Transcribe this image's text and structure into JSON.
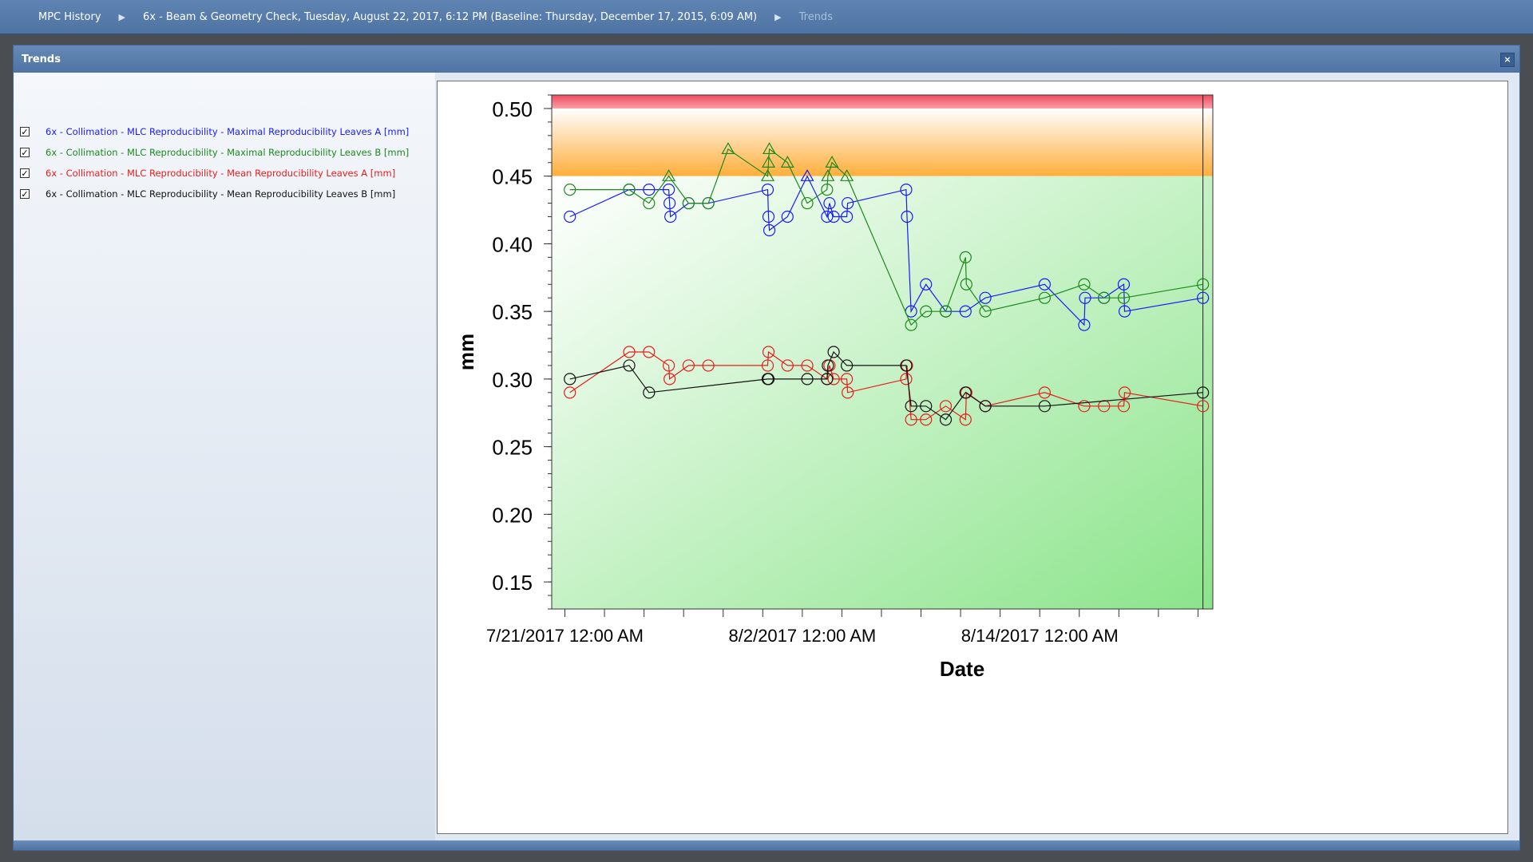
{
  "breadcrumb": {
    "root": "MPC History",
    "check": "6x - Beam & Geometry Check, Tuesday, August 22, 2017, 6:12 PM (Baseline: Thursday, December 17, 2015, 6:09 AM)",
    "current": "Trends"
  },
  "panel": {
    "title": "Trends",
    "close": "×"
  },
  "legend": [
    {
      "label": "6x - Collimation - MLC Reproducibility - Maximal Reproducibility Leaves A [mm]",
      "color": "#1a1aff",
      "checked": true
    },
    {
      "label": "6x - Collimation - MLC Reproducibility - Maximal Reproducibility Leaves B [mm]",
      "color": "#1a8a1a",
      "checked": true
    },
    {
      "label": "6x - Collimation - MLC Reproducibility - Mean Reproducibility Leaves A [mm]",
      "color": "#e81c1c",
      "checked": true
    },
    {
      "label": "6x - Collimation - MLC Reproducibility - Mean Reproducibility Leaves B [mm]",
      "color": "#111111",
      "checked": true
    }
  ],
  "chart_data": {
    "type": "line",
    "xlabel": "Date",
    "ylabel": "mm",
    "ylim": [
      0.13,
      0.51
    ],
    "y_ticks": [
      "0.15",
      "0.20",
      "0.25",
      "0.30",
      "0.35",
      "0.40",
      "0.45",
      "0.50"
    ],
    "x_tick_labels": [
      "7/21/2017 12:00 AM",
      "8/2/2017 12:00 AM",
      "8/14/2017 12:00 AM"
    ],
    "xlim": [
      "2017-07-20T08:00",
      "2017-08-22T18:00"
    ],
    "zones": [
      {
        "from": 0.5,
        "to": 0.51,
        "color": "#f05060"
      },
      {
        "from": 0.45,
        "to": 0.5,
        "color": "#ffb040"
      },
      {
        "from": 0.13,
        "to": 0.45,
        "color": "#8ee48e"
      }
    ],
    "series": [
      {
        "name": "6x - Collimation - MLC Reproducibility - Maximal Reproducibility Leaves A [mm]",
        "color": "#1a1aff",
        "points": [
          [
            "2017-07-21T06:00",
            0.42,
            "o"
          ],
          [
            "2017-07-24T06:00",
            0.44,
            "o"
          ],
          [
            "2017-07-25T06:00",
            0.44,
            "o"
          ],
          [
            "2017-07-26T06:00",
            0.44,
            "o"
          ],
          [
            "2017-07-26T07:00",
            0.43,
            "o"
          ],
          [
            "2017-07-26T08:00",
            0.42,
            "o"
          ],
          [
            "2017-07-27T06:00",
            0.43,
            "o"
          ],
          [
            "2017-07-28T06:00",
            0.43,
            "o"
          ],
          [
            "2017-07-31T06:00",
            0.44,
            "o"
          ],
          [
            "2017-07-31T07:00",
            0.42,
            "o"
          ],
          [
            "2017-07-31T08:00",
            0.41,
            "o"
          ],
          [
            "2017-08-01T06:00",
            0.42,
            "o"
          ],
          [
            "2017-08-02T06:00",
            0.45,
            "t"
          ],
          [
            "2017-08-03T06:00",
            0.42,
            "o"
          ],
          [
            "2017-08-03T09:00",
            0.43,
            "o"
          ],
          [
            "2017-08-03T14:00",
            0.42,
            "o"
          ],
          [
            "2017-08-04T06:00",
            0.42,
            "o"
          ],
          [
            "2017-08-04T07:00",
            0.43,
            "o"
          ],
          [
            "2017-08-07T06:00",
            0.44,
            "o"
          ],
          [
            "2017-08-07T07:00",
            0.42,
            "o"
          ],
          [
            "2017-08-07T12:00",
            0.35,
            "o"
          ],
          [
            "2017-08-08T06:00",
            0.37,
            "o"
          ],
          [
            "2017-08-09T06:00",
            0.35,
            "o"
          ],
          [
            "2017-08-10T06:00",
            0.35,
            "o"
          ],
          [
            "2017-08-11T06:00",
            0.36,
            "o"
          ],
          [
            "2017-08-14T06:00",
            0.37,
            "o"
          ],
          [
            "2017-08-16T06:00",
            0.34,
            "o"
          ],
          [
            "2017-08-16T07:00",
            0.36,
            "o"
          ],
          [
            "2017-08-17T06:00",
            0.36,
            "o"
          ],
          [
            "2017-08-18T06:00",
            0.37,
            "o"
          ],
          [
            "2017-08-18T07:00",
            0.35,
            "o"
          ],
          [
            "2017-08-22T06:00",
            0.36,
            "o"
          ]
        ]
      },
      {
        "name": "6x - Collimation - MLC Reproducibility - Maximal Reproducibility Leaves B [mm]",
        "color": "#1a8a1a",
        "points": [
          [
            "2017-07-21T06:00",
            0.44,
            "o"
          ],
          [
            "2017-07-24T06:00",
            0.44,
            "o"
          ],
          [
            "2017-07-25T06:00",
            0.43,
            "o"
          ],
          [
            "2017-07-26T06:00",
            0.45,
            "t"
          ],
          [
            "2017-07-27T06:00",
            0.43,
            "o"
          ],
          [
            "2017-07-28T06:00",
            0.43,
            "o"
          ],
          [
            "2017-07-29T06:00",
            0.47,
            "t"
          ],
          [
            "2017-07-31T06:00",
            0.45,
            "t"
          ],
          [
            "2017-07-31T07:00",
            0.46,
            "t"
          ],
          [
            "2017-07-31T08:00",
            0.47,
            "t"
          ],
          [
            "2017-08-01T06:00",
            0.46,
            "t"
          ],
          [
            "2017-08-02T06:00",
            0.43,
            "o"
          ],
          [
            "2017-08-03T06:00",
            0.44,
            "o"
          ],
          [
            "2017-08-03T07:00",
            0.45,
            "t"
          ],
          [
            "2017-08-03T12:00",
            0.46,
            "t"
          ],
          [
            "2017-08-04T06:00",
            0.45,
            "t"
          ],
          [
            "2017-08-07T12:00",
            0.34,
            "o"
          ],
          [
            "2017-08-08T06:00",
            0.35,
            "o"
          ],
          [
            "2017-08-09T06:00",
            0.35,
            "o"
          ],
          [
            "2017-08-10T06:00",
            0.39,
            "o"
          ],
          [
            "2017-08-10T07:00",
            0.37,
            "o"
          ],
          [
            "2017-08-11T06:00",
            0.35,
            "o"
          ],
          [
            "2017-08-14T06:00",
            0.36,
            "o"
          ],
          [
            "2017-08-16T06:00",
            0.37,
            "o"
          ],
          [
            "2017-08-17T06:00",
            0.36,
            "o"
          ],
          [
            "2017-08-18T06:00",
            0.36,
            "o"
          ],
          [
            "2017-08-22T06:00",
            0.37,
            "o"
          ]
        ]
      },
      {
        "name": "6x - Collimation - MLC Reproducibility - Mean Reproducibility Leaves A [mm]",
        "color": "#e81c1c",
        "points": [
          [
            "2017-07-21T06:00",
            0.29,
            "o"
          ],
          [
            "2017-07-24T06:00",
            0.32,
            "o"
          ],
          [
            "2017-07-25T06:00",
            0.32,
            "o"
          ],
          [
            "2017-07-26T06:00",
            0.31,
            "o"
          ],
          [
            "2017-07-26T07:00",
            0.3,
            "o"
          ],
          [
            "2017-07-27T06:00",
            0.31,
            "o"
          ],
          [
            "2017-07-28T06:00",
            0.31,
            "o"
          ],
          [
            "2017-07-31T06:00",
            0.31,
            "o"
          ],
          [
            "2017-07-31T07:00",
            0.32,
            "o"
          ],
          [
            "2017-08-01T06:00",
            0.31,
            "o"
          ],
          [
            "2017-08-02T06:00",
            0.31,
            "o"
          ],
          [
            "2017-08-03T06:00",
            0.3,
            "o"
          ],
          [
            "2017-08-03T09:00",
            0.31,
            "o"
          ],
          [
            "2017-08-03T14:00",
            0.3,
            "o"
          ],
          [
            "2017-08-04T06:00",
            0.3,
            "o"
          ],
          [
            "2017-08-04T07:00",
            0.29,
            "o"
          ],
          [
            "2017-08-07T06:00",
            0.3,
            "o"
          ],
          [
            "2017-08-07T07:00",
            0.31,
            "o"
          ],
          [
            "2017-08-07T12:00",
            0.27,
            "o"
          ],
          [
            "2017-08-08T06:00",
            0.27,
            "o"
          ],
          [
            "2017-08-09T06:00",
            0.28,
            "o"
          ],
          [
            "2017-08-10T06:00",
            0.27,
            "o"
          ],
          [
            "2017-08-10T07:00",
            0.29,
            "o"
          ],
          [
            "2017-08-11T06:00",
            0.28,
            "o"
          ],
          [
            "2017-08-14T06:00",
            0.29,
            "o"
          ],
          [
            "2017-08-16T06:00",
            0.28,
            "o"
          ],
          [
            "2017-08-17T06:00",
            0.28,
            "o"
          ],
          [
            "2017-08-18T06:00",
            0.28,
            "o"
          ],
          [
            "2017-08-18T07:00",
            0.29,
            "o"
          ],
          [
            "2017-08-22T06:00",
            0.28,
            "o"
          ]
        ]
      },
      {
        "name": "6x - Collimation - MLC Reproducibility - Mean Reproducibility Leaves B [mm]",
        "color": "#111111",
        "points": [
          [
            "2017-07-21T06:00",
            0.3,
            "o"
          ],
          [
            "2017-07-24T06:00",
            0.31,
            "o"
          ],
          [
            "2017-07-25T06:00",
            0.29,
            "o"
          ],
          [
            "2017-07-31T06:00",
            0.3,
            "o"
          ],
          [
            "2017-07-31T07:00",
            0.3,
            "o"
          ],
          [
            "2017-08-02T06:00",
            0.3,
            "o"
          ],
          [
            "2017-08-03T06:00",
            0.3,
            "o"
          ],
          [
            "2017-08-03T07:00",
            0.31,
            "o"
          ],
          [
            "2017-08-03T14:00",
            0.32,
            "o"
          ],
          [
            "2017-08-04T06:00",
            0.31,
            "o"
          ],
          [
            "2017-08-07T06:00",
            0.31,
            "o"
          ],
          [
            "2017-08-07T12:00",
            0.28,
            "o"
          ],
          [
            "2017-08-08T06:00",
            0.28,
            "o"
          ],
          [
            "2017-08-09T06:00",
            0.27,
            "o"
          ],
          [
            "2017-08-10T06:00",
            0.29,
            "o"
          ],
          [
            "2017-08-11T06:00",
            0.28,
            "o"
          ],
          [
            "2017-08-14T06:00",
            0.28,
            "o"
          ],
          [
            "2017-08-22T06:00",
            0.29,
            "o"
          ]
        ]
      }
    ]
  }
}
